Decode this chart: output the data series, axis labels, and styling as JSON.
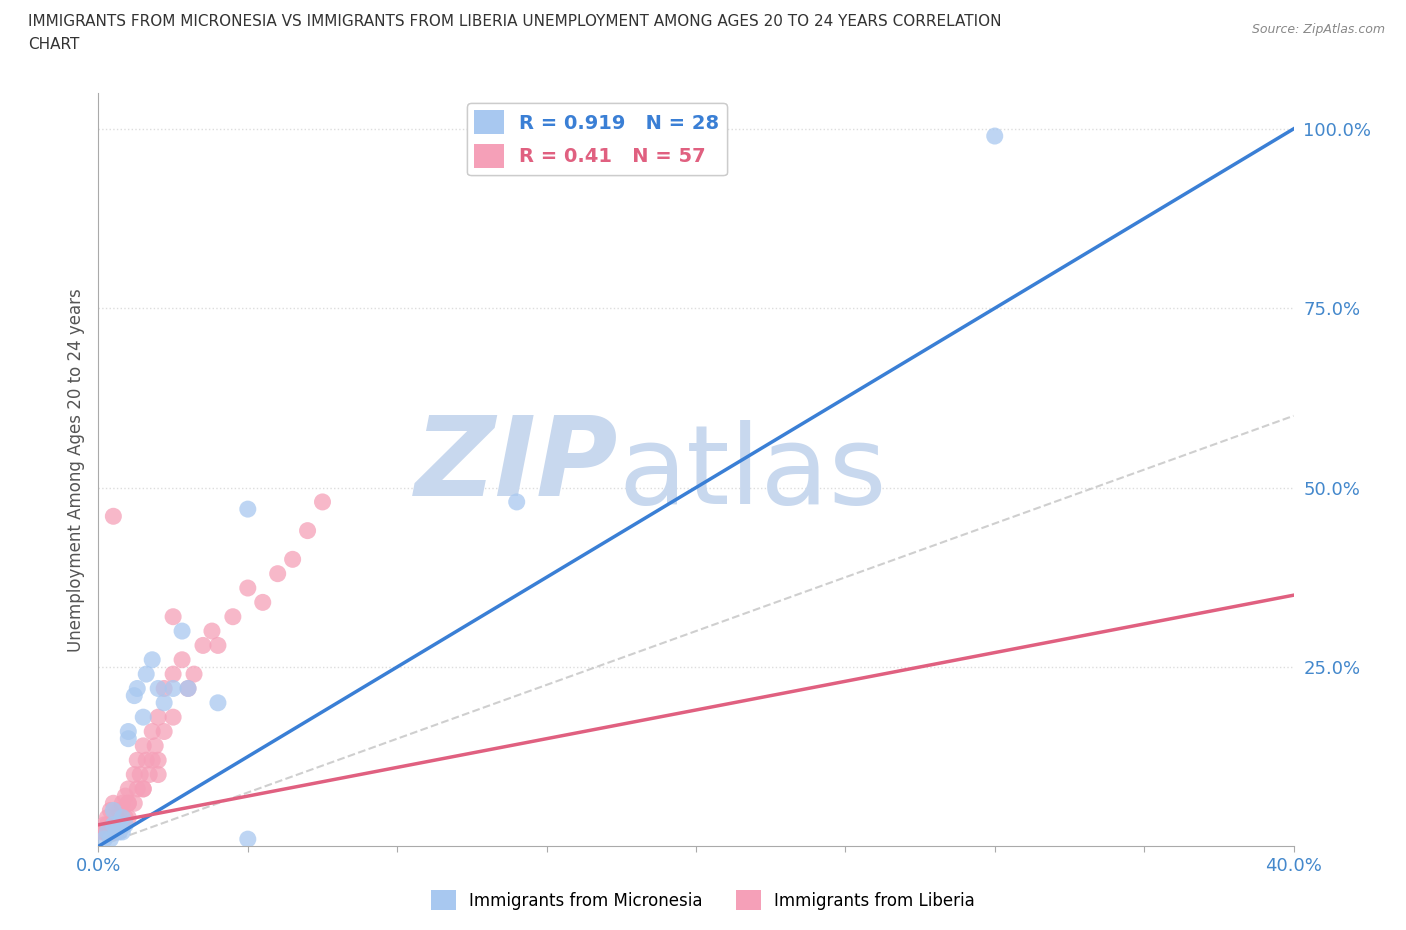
{
  "title_line1": "IMMIGRANTS FROM MICRONESIA VS IMMIGRANTS FROM LIBERIA UNEMPLOYMENT AMONG AGES 20 TO 24 YEARS CORRELATION",
  "title_line2": "CHART",
  "source_text": "Source: ZipAtlas.com",
  "ylabel": "Unemployment Among Ages 20 to 24 years",
  "xlim": [
    0.0,
    0.4
  ],
  "ylim": [
    0.0,
    1.05
  ],
  "xticks": [
    0.0,
    0.05,
    0.1,
    0.15,
    0.2,
    0.25,
    0.3,
    0.35,
    0.4
  ],
  "xticklabels": [
    "0.0%",
    "",
    "",
    "",
    "",
    "",
    "",
    "",
    "40.0%"
  ],
  "ytick_positions": [
    0.25,
    0.5,
    0.75,
    1.0
  ],
  "ytick_labels": [
    "25.0%",
    "50.0%",
    "75.0%",
    "100.0%"
  ],
  "micronesia_color": "#a8c8f0",
  "liberia_color": "#f5a0b8",
  "micronesia_line_color": "#3a7fd5",
  "liberia_line_color": "#e06080",
  "R_micronesia": 0.919,
  "N_micronesia": 28,
  "R_liberia": 0.41,
  "N_liberia": 57,
  "micronesia_x": [
    0.002,
    0.003,
    0.004,
    0.005,
    0.005,
    0.006,
    0.007,
    0.007,
    0.008,
    0.008,
    0.009,
    0.01,
    0.01,
    0.012,
    0.013,
    0.015,
    0.016,
    0.018,
    0.02,
    0.022,
    0.025,
    0.028,
    0.03,
    0.04,
    0.05,
    0.14,
    0.3,
    0.05
  ],
  "micronesia_y": [
    0.01,
    0.02,
    0.01,
    0.03,
    0.05,
    0.02,
    0.02,
    0.03,
    0.02,
    0.04,
    0.03,
    0.15,
    0.16,
    0.21,
    0.22,
    0.18,
    0.24,
    0.26,
    0.22,
    0.2,
    0.22,
    0.3,
    0.22,
    0.2,
    0.47,
    0.48,
    0.99,
    0.01
  ],
  "liberia_x": [
    0.001,
    0.002,
    0.002,
    0.003,
    0.003,
    0.004,
    0.004,
    0.005,
    0.005,
    0.005,
    0.006,
    0.006,
    0.007,
    0.007,
    0.008,
    0.008,
    0.009,
    0.009,
    0.01,
    0.01,
    0.01,
    0.012,
    0.012,
    0.013,
    0.013,
    0.014,
    0.015,
    0.015,
    0.016,
    0.017,
    0.018,
    0.018,
    0.019,
    0.02,
    0.02,
    0.022,
    0.022,
    0.025,
    0.025,
    0.028,
    0.03,
    0.032,
    0.035,
    0.038,
    0.04,
    0.045,
    0.05,
    0.055,
    0.06,
    0.065,
    0.07,
    0.075,
    0.005,
    0.01,
    0.015,
    0.02,
    0.025
  ],
  "liberia_y": [
    0.02,
    0.02,
    0.03,
    0.03,
    0.04,
    0.02,
    0.05,
    0.02,
    0.03,
    0.06,
    0.02,
    0.04,
    0.03,
    0.05,
    0.03,
    0.06,
    0.04,
    0.07,
    0.04,
    0.06,
    0.08,
    0.06,
    0.1,
    0.08,
    0.12,
    0.1,
    0.08,
    0.14,
    0.12,
    0.1,
    0.12,
    0.16,
    0.14,
    0.12,
    0.18,
    0.16,
    0.22,
    0.18,
    0.24,
    0.26,
    0.22,
    0.24,
    0.28,
    0.3,
    0.28,
    0.32,
    0.36,
    0.34,
    0.38,
    0.4,
    0.44,
    0.48,
    0.46,
    0.06,
    0.08,
    0.1,
    0.32
  ],
  "watermark_text_zip": "ZIP",
  "watermark_text_atlas": "atlas",
  "watermark_color": "#c8d8ee",
  "background_color": "#ffffff",
  "grid_color": "#dddddd",
  "spine_color": "#aaaaaa"
}
